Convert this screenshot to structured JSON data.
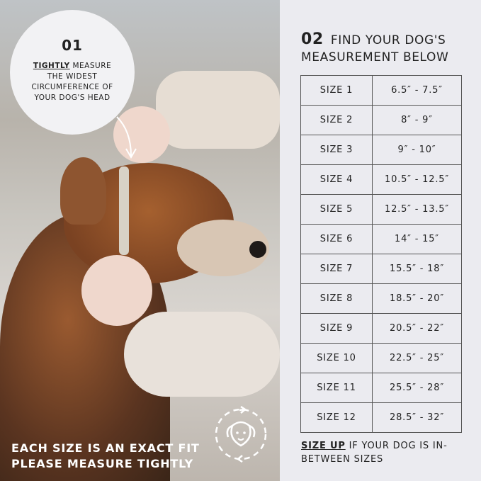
{
  "step1": {
    "number": "01",
    "emphasis": "TIGHTLY",
    "text": " MEASURE THE WIDEST CIRCUMFERENCE OF YOUR DOG'S HEAD"
  },
  "bottom_banner": {
    "line1": "EACH SIZE IS AN EXACT FIT",
    "line2": "PLEASE MEASURE TIGHTLY",
    "icon": "dog-face-rotate-icon"
  },
  "step2": {
    "number": "02",
    "line1": "FIND YOUR DOG'S",
    "line2": "MEASUREMENT BELOW"
  },
  "sizes": [
    {
      "size": "SIZE 1",
      "range": "6.5″ - 7.5″"
    },
    {
      "size": "SIZE 2",
      "range": "8″ - 9″"
    },
    {
      "size": "SIZE 3",
      "range": "9″ - 10″"
    },
    {
      "size": "SIZE 4",
      "range": "10.5″ - 12.5″"
    },
    {
      "size": "SIZE 5",
      "range": "12.5″ - 13.5″"
    },
    {
      "size": "SIZE 6",
      "range": "14″ - 15″"
    },
    {
      "size": "SIZE 7",
      "range": "15.5″ - 18″"
    },
    {
      "size": "SIZE 8",
      "range": "18.5″ - 20″"
    },
    {
      "size": "SIZE 9",
      "range": "20.5″ - 22″"
    },
    {
      "size": "SIZE 10",
      "range": "22.5″ - 25″"
    },
    {
      "size": "SIZE 11",
      "range": "25.5″ - 28″"
    },
    {
      "size": "SIZE 12",
      "range": "28.5″ - 32″"
    }
  ],
  "note": {
    "emphasis": "SIZE UP",
    "text": " IF YOUR DOG IS IN-BETWEEN SIZES"
  },
  "colors": {
    "panel": "#ebebf0",
    "text": "#222222",
    "dog_fur": "#8a4a25"
  }
}
